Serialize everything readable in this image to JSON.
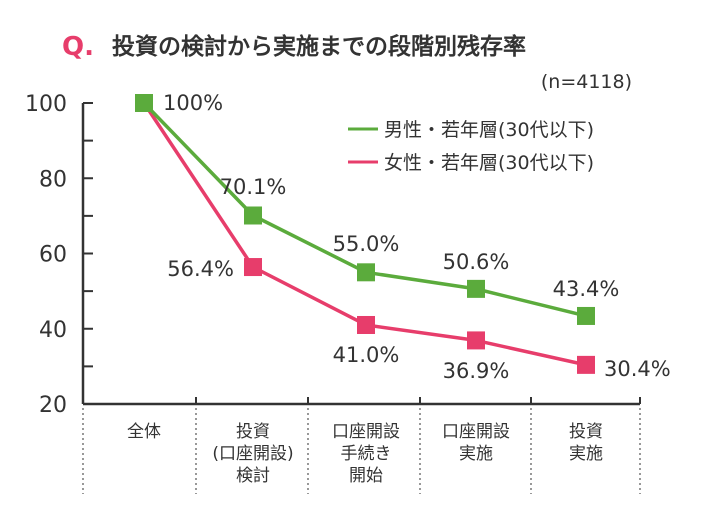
{
  "header": {
    "q_mark": "Q.",
    "title": "投資の検討から実施までの段階別残存率"
  },
  "chart_data": {
    "type": "line",
    "title": "投資の検討から実施までの段階別残存率",
    "subtitle": "(n=4118)",
    "xlabel": "",
    "ylabel": "",
    "ylim": [
      20,
      100
    ],
    "yticks": [
      20,
      40,
      60,
      80,
      100
    ],
    "categories": [
      [
        "全体"
      ],
      [
        "投資",
        "(口座開設)",
        "検討"
      ],
      [
        "口座開設",
        "手続き",
        "開始"
      ],
      [
        "口座開設",
        "実施"
      ],
      [
        "投資",
        "実施"
      ]
    ],
    "series": [
      {
        "name": "男性・若年層(30代以下)",
        "color": "#5bab3c",
        "values": [
          100,
          70.1,
          55.0,
          50.6,
          43.4
        ],
        "labels": [
          "100%",
          "70.1%",
          "55.0%",
          "50.6%",
          "43.4%"
        ]
      },
      {
        "name": "女性・若年層(30代以下)",
        "color": "#e73d6b",
        "values": [
          100,
          56.4,
          41.0,
          36.9,
          30.4
        ],
        "labels": [
          "",
          "56.4%",
          "41.0%",
          "36.9%",
          "30.4%"
        ]
      }
    ],
    "grid": false,
    "legend_position": "top-right"
  },
  "colors": {
    "accent": "#e73d6b",
    "axis": "#333333"
  }
}
